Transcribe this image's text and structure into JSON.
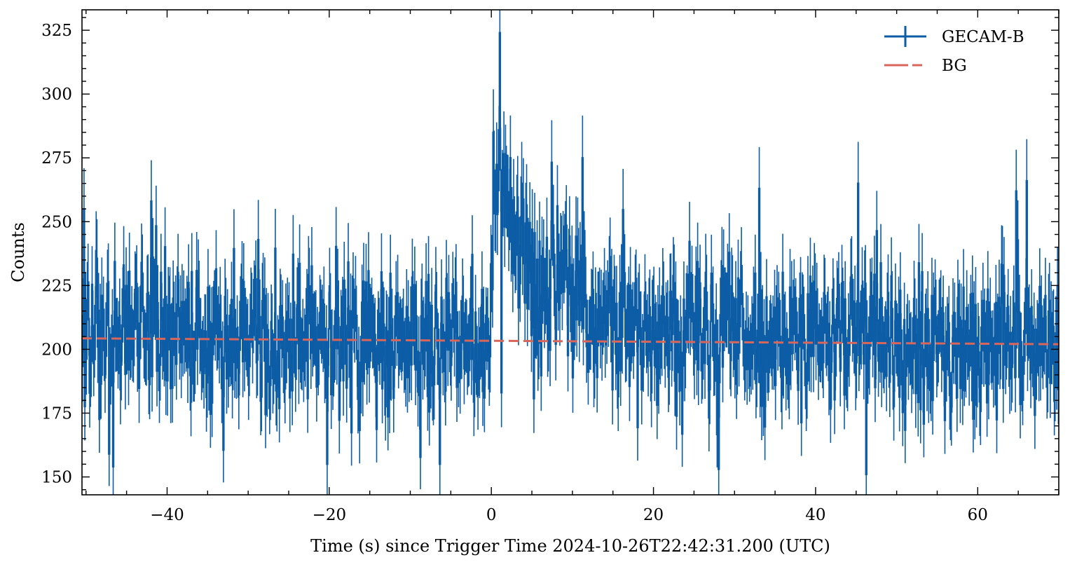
{
  "chart_data": {
    "type": "line",
    "title": "",
    "xlabel": "Time (s) since Trigger Time  2024-10-26T22:42:31.200 (UTC)",
    "ylabel": "Counts",
    "xlim": [
      -50.5,
      70
    ],
    "ylim": [
      143,
      333
    ],
    "xticks": [
      -40,
      -20,
      0,
      20,
      40,
      60
    ],
    "yticks": [
      150,
      175,
      200,
      225,
      250,
      275,
      300,
      325
    ],
    "legend_position": "top-right",
    "grid": false,
    "bin_width": 0.1,
    "series": [
      {
        "name": "GECAM-B",
        "style": "step-with-errorbars",
        "color": "#0C5DA5",
        "baseline_counts": 204,
        "profile_segments": [
          {
            "t": -50.5,
            "counts": 205
          },
          {
            "t": -0.2,
            "counts": 203
          },
          {
            "t": 0.0,
            "counts": 232
          },
          {
            "t": 0.5,
            "counts": 262
          },
          {
            "t": 1.0,
            "counts": 276
          },
          {
            "t": 1.5,
            "counts": 268
          },
          {
            "t": 2.5,
            "counts": 246
          },
          {
            "t": 4.0,
            "counts": 234
          },
          {
            "t": 6.0,
            "counts": 226
          },
          {
            "t": 9.0,
            "counts": 219
          },
          {
            "t": 13.0,
            "counts": 212
          },
          {
            "t": 20.0,
            "counts": 205
          },
          {
            "t": 70.0,
            "counts": 203
          }
        ],
        "peaks": [
          {
            "t": -50.2,
            "counts": 255
          },
          {
            "t": -42.0,
            "counts": 258
          },
          {
            "t": 1.0,
            "counts": 324
          },
          {
            "t": 1.3,
            "counts": 318
          },
          {
            "t": 0.2,
            "counts": 285
          },
          {
            "t": 3.8,
            "counts": 265
          },
          {
            "t": 11.3,
            "counts": 275
          },
          {
            "t": 33.0,
            "counts": 263
          },
          {
            "t": 45.3,
            "counts": 265
          },
          {
            "t": 66.0,
            "counts": 266
          },
          {
            "t": 64.7,
            "counts": 262
          }
        ],
        "troughs": [
          {
            "t": -46.6,
            "counts": 154
          },
          {
            "t": -20.3,
            "counts": 155
          },
          {
            "t": -6.4,
            "counts": 155
          },
          {
            "t": 1.3,
            "counts": 183
          },
          {
            "t": 46.2,
            "counts": 151
          },
          {
            "t": 28.0,
            "counts": 153
          }
        ]
      },
      {
        "name": "BG",
        "style": "dashed",
        "color": "#D9665B",
        "x": [
          -50.5,
          70
        ],
        "values": [
          204.3,
          202.0
        ]
      }
    ]
  }
}
